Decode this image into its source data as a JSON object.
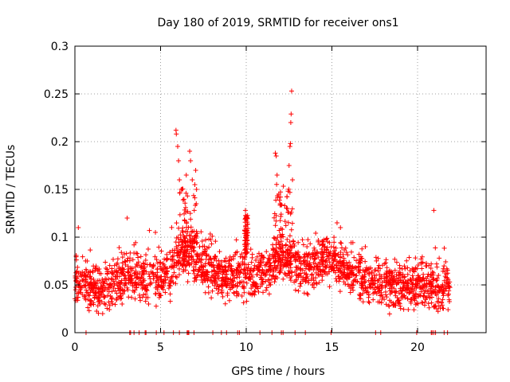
{
  "chart_data": {
    "type": "scatter",
    "title": "Day 180 of 2019, SRMTID for receiver ons1",
    "xlabel": "GPS time / hours",
    "ylabel": "SRMTID / TECUs",
    "xlim": [
      0,
      24
    ],
    "ylim": [
      0,
      0.3
    ],
    "grid": true,
    "marker": "+",
    "marker_color": "#ff0000",
    "x_ticks": [
      "0",
      "5",
      "10",
      "15",
      "20"
    ],
    "x_tick_values": [
      0,
      5,
      10,
      15,
      20
    ],
    "y_ticks": [
      "0",
      "0.05",
      "0.1",
      "0.15",
      "0.2",
      "0.25",
      "0.3"
    ],
    "y_tick_values": [
      0,
      0.05,
      0.1,
      0.15,
      0.2,
      0.25,
      0.3
    ],
    "series": [
      {
        "name": "SRMTID",
        "baseline_profile": [
          [
            0.0,
            0.055
          ],
          [
            0.5,
            0.05
          ],
          [
            1.0,
            0.05
          ],
          [
            1.5,
            0.045
          ],
          [
            2.0,
            0.048
          ],
          [
            2.5,
            0.055
          ],
          [
            3.0,
            0.058
          ],
          [
            3.5,
            0.058
          ],
          [
            4.0,
            0.06
          ],
          [
            4.5,
            0.06
          ],
          [
            5.0,
            0.058
          ],
          [
            5.5,
            0.065
          ],
          [
            6.0,
            0.075
          ],
          [
            6.5,
            0.085
          ],
          [
            7.0,
            0.08
          ],
          [
            7.5,
            0.07
          ],
          [
            8.0,
            0.065
          ],
          [
            8.5,
            0.06
          ],
          [
            9.0,
            0.058
          ],
          [
            9.5,
            0.058
          ],
          [
            10.0,
            0.06
          ],
          [
            10.5,
            0.06
          ],
          [
            11.0,
            0.06
          ],
          [
            11.5,
            0.07
          ],
          [
            12.0,
            0.08
          ],
          [
            12.5,
            0.075
          ],
          [
            13.0,
            0.07
          ],
          [
            13.5,
            0.068
          ],
          [
            14.0,
            0.07
          ],
          [
            14.5,
            0.075
          ],
          [
            15.0,
            0.078
          ],
          [
            15.5,
            0.07
          ],
          [
            16.0,
            0.065
          ],
          [
            16.5,
            0.06
          ],
          [
            17.0,
            0.058
          ],
          [
            17.5,
            0.055
          ],
          [
            18.0,
            0.052
          ],
          [
            18.5,
            0.05
          ],
          [
            19.0,
            0.048
          ],
          [
            19.5,
            0.05
          ],
          [
            20.0,
            0.05
          ],
          [
            20.5,
            0.048
          ],
          [
            21.0,
            0.047
          ],
          [
            21.5,
            0.046
          ],
          [
            21.9,
            0.045
          ]
        ],
        "x_range": [
          0.0,
          21.9
        ],
        "point_count": 2200,
        "spikes": [
          {
            "x": 5.9,
            "y": 0.212
          },
          {
            "x": 5.92,
            "y": 0.208
          },
          {
            "x": 6.0,
            "y": 0.195
          },
          {
            "x": 6.05,
            "y": 0.18
          },
          {
            "x": 6.1,
            "y": 0.16
          },
          {
            "x": 6.2,
            "y": 0.15
          },
          {
            "x": 6.5,
            "y": 0.165
          },
          {
            "x": 6.7,
            "y": 0.19
          },
          {
            "x": 6.75,
            "y": 0.18
          },
          {
            "x": 6.85,
            "y": 0.16
          },
          {
            "x": 7.0,
            "y": 0.155
          },
          {
            "x": 7.05,
            "y": 0.17
          },
          {
            "x": 7.1,
            "y": 0.15
          },
          {
            "x": 9.95,
            "y": 0.128
          },
          {
            "x": 10.0,
            "y": 0.122
          },
          {
            "x": 11.7,
            "y": 0.188
          },
          {
            "x": 11.75,
            "y": 0.185
          },
          {
            "x": 11.8,
            "y": 0.165
          },
          {
            "x": 11.9,
            "y": 0.145
          },
          {
            "x": 12.0,
            "y": 0.142
          },
          {
            "x": 12.4,
            "y": 0.13
          },
          {
            "x": 12.5,
            "y": 0.175
          },
          {
            "x": 12.55,
            "y": 0.195
          },
          {
            "x": 12.58,
            "y": 0.198
          },
          {
            "x": 12.6,
            "y": 0.22
          },
          {
            "x": 12.62,
            "y": 0.229
          },
          {
            "x": 12.65,
            "y": 0.253
          },
          {
            "x": 12.7,
            "y": 0.16
          },
          {
            "x": 15.3,
            "y": 0.115
          },
          {
            "x": 15.5,
            "y": 0.11
          },
          {
            "x": 20.95,
            "y": 0.128
          },
          {
            "x": 0.2,
            "y": 0.11
          },
          {
            "x": 3.05,
            "y": 0.12
          },
          {
            "x": 4.7,
            "y": 0.105
          }
        ],
        "zero_points": [
          0.65,
          3.2,
          3.25,
          3.45,
          3.75,
          4.1,
          4.15,
          4.75,
          5.2,
          5.75,
          6.1,
          6.55,
          6.6,
          6.65,
          6.95,
          8.05,
          8.55,
          8.85,
          9.5,
          9.6,
          10.8,
          11.5,
          12.05,
          12.15,
          12.85,
          13.45,
          14.95,
          17.55,
          17.85,
          19.95,
          20.8,
          20.85,
          20.95,
          21.05,
          21.55,
          21.75
        ]
      }
    ]
  }
}
